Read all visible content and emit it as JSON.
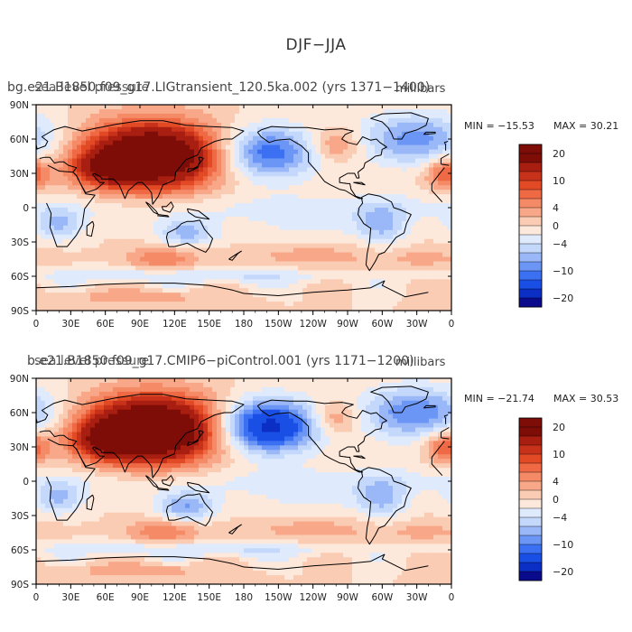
{
  "figure": {
    "title": "DJF−JJA",
    "units": "millibars"
  },
  "colors": {
    "scale": [
      "#0a0a8c",
      "#0b2ec4",
      "#1a4fe6",
      "#3c70f2",
      "#6b96f5",
      "#9ab8f7",
      "#c4d8fb",
      "#dfeafc",
      "#fde8dc",
      "#fbccb4",
      "#f8a888",
      "#f48a66",
      "#ef6a44",
      "#e24a26",
      "#c9321a",
      "#a81e10",
      "#7e0d08"
    ],
    "coast": "#000000"
  },
  "chart_data": [
    {
      "type": "heatmap",
      "variable": "sea level pressure",
      "title": "bg.e21.B1850.f09_g17.LIGtransient_120.5ka.002 (yrs 1371−1400)",
      "overlay_text": "sea level pressure",
      "units": "millibars",
      "min_label": "MIN = −15.53",
      "max_label": "MAX =  30.21",
      "min": -15.53,
      "max": 30.21,
      "x_ticks": [
        "0",
        "30E",
        "60E",
        "90E",
        "120E",
        "150E",
        "180",
        "150W",
        "120W",
        "90W",
        "60W",
        "30W",
        "0"
      ],
      "y_ticks": [
        "90N",
        "60N",
        "30N",
        "0",
        "30S",
        "60S",
        "90S"
      ],
      "xlim": [
        0,
        360
      ],
      "ylim": [
        -90,
        90
      ],
      "colorbar_levels": [
        -24,
        -20,
        -16,
        -12,
        -10,
        -8,
        -6,
        -4,
        -2,
        0,
        2,
        4,
        6,
        8,
        10,
        12,
        16,
        20,
        24
      ],
      "colorbar_labels": [
        {
          "text": "20",
          "value": 20
        },
        {
          "text": "10",
          "value": 10
        },
        {
          "text": "4",
          "value": 4
        },
        {
          "text": "0",
          "value": 0
        },
        {
          "text": "−4",
          "value": -4
        },
        {
          "text": "−10",
          "value": -10
        },
        {
          "text": "−20",
          "value": -20
        }
      ],
      "features": [
        {
          "name": "asian-high",
          "lon": 100,
          "lat": 45,
          "value": 26
        },
        {
          "name": "north-pacific-low",
          "lon": 200,
          "lat": 48,
          "value": -12
        },
        {
          "name": "north-atlantic-low",
          "lon": 330,
          "lat": 60,
          "value": -9
        },
        {
          "name": "australian-low",
          "lon": 130,
          "lat": -22,
          "value": -7
        },
        {
          "name": "south-indian-high",
          "lon": 110,
          "lat": -45,
          "value": 6
        }
      ]
    },
    {
      "type": "heatmap",
      "variable": "sea level pressure",
      "title": "b.e21.B1850.f09_g17.CMIP6−piControl.001 (yrs 1171−1200)",
      "overlay_text": "sea level pressure",
      "units": "millibars",
      "min_label": "MIN = −21.74",
      "max_label": "MAX =  30.53",
      "min": -21.74,
      "max": 30.53,
      "x_ticks": [
        "0",
        "30E",
        "60E",
        "90E",
        "120E",
        "150E",
        "180",
        "150W",
        "120W",
        "90W",
        "60W",
        "30W",
        "0"
      ],
      "y_ticks": [
        "90N",
        "60N",
        "30N",
        "0",
        "30S",
        "60S",
        "90S"
      ],
      "xlim": [
        0,
        360
      ],
      "ylim": [
        -90,
        90
      ],
      "colorbar_levels": [
        -24,
        -20,
        -16,
        -12,
        -10,
        -8,
        -6,
        -4,
        -2,
        0,
        2,
        4,
        6,
        8,
        10,
        12,
        16,
        20,
        24
      ],
      "colorbar_labels": [
        {
          "text": "20",
          "value": 20
        },
        {
          "text": "10",
          "value": 10
        },
        {
          "text": "4",
          "value": 4
        },
        {
          "text": "0",
          "value": 0
        },
        {
          "text": "−4",
          "value": -4
        },
        {
          "text": "−10",
          "value": -10
        },
        {
          "text": "−20",
          "value": -20
        }
      ],
      "features": [
        {
          "name": "asian-high",
          "lon": 100,
          "lat": 45,
          "value": 28
        },
        {
          "name": "north-pacific-low",
          "lon": 195,
          "lat": 48,
          "value": -18
        },
        {
          "name": "north-atlantic-low",
          "lon": 330,
          "lat": 60,
          "value": -10
        },
        {
          "name": "australian-low",
          "lon": 130,
          "lat": -22,
          "value": -8
        },
        {
          "name": "south-indian-high",
          "lon": 110,
          "lat": -45,
          "value": 6
        }
      ]
    }
  ]
}
